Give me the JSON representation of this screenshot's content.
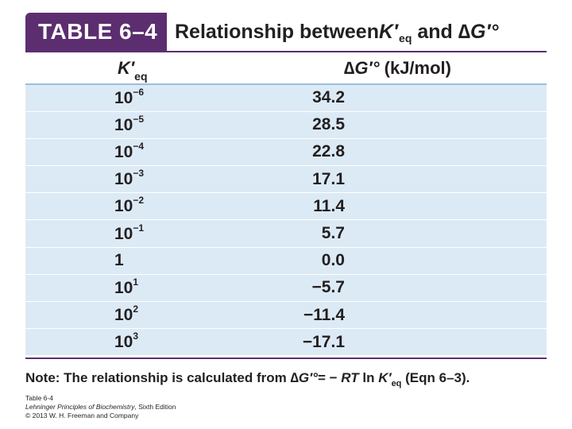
{
  "header": {
    "badge": "TABLE 6–4",
    "title_pre": "Relationship between ",
    "title_k": "K′",
    "title_k_sub": "eq",
    "title_mid": " and ",
    "title_delta": "∆G′°"
  },
  "table": {
    "col1": {
      "symbol": "K′",
      "sub": "eq"
    },
    "col2": {
      "symbol": "∆G′°",
      "unit": " (kJ/mol)"
    },
    "rows": [
      {
        "base": "10",
        "exp": "−6",
        "dg": "34.2"
      },
      {
        "base": "10",
        "exp": "−5",
        "dg": "28.5"
      },
      {
        "base": "10",
        "exp": "−4",
        "dg": "22.8"
      },
      {
        "base": "10",
        "exp": "−3",
        "dg": "17.1"
      },
      {
        "base": "10",
        "exp": "−2",
        "dg": "11.4"
      },
      {
        "base": "10",
        "exp": "−1",
        "dg": "5.7"
      },
      {
        "base": "1",
        "exp": "",
        "dg": "0.0"
      },
      {
        "base": "10",
        "exp": "1",
        "dg": "−5.7"
      },
      {
        "base": "10",
        "exp": "2",
        "dg": "−11.4"
      },
      {
        "base": "10",
        "exp": "3",
        "dg": "−17.1"
      }
    ]
  },
  "note": {
    "label": "Note:",
    "text_pre": " The relationship is calculated from ",
    "formula_lhs": "∆G′°",
    "formula_mid": "= − ",
    "formula_rt": "RT",
    "formula_ln": " ln ",
    "formula_k": "K′",
    "formula_k_sub": "eq",
    "text_post": " (Eqn 6–3)."
  },
  "caption": {
    "line1": "Table 6-4",
    "line2_book": "Lehninger Principles of Biochemistry",
    "line2_rest": ", Sixth Edition",
    "line3": "© 2013 W. H. Freeman and Company"
  },
  "colors": {
    "badge": "#5c2e70",
    "row_fill": "#dceaf6",
    "header_rule": "#9bbfdc"
  }
}
